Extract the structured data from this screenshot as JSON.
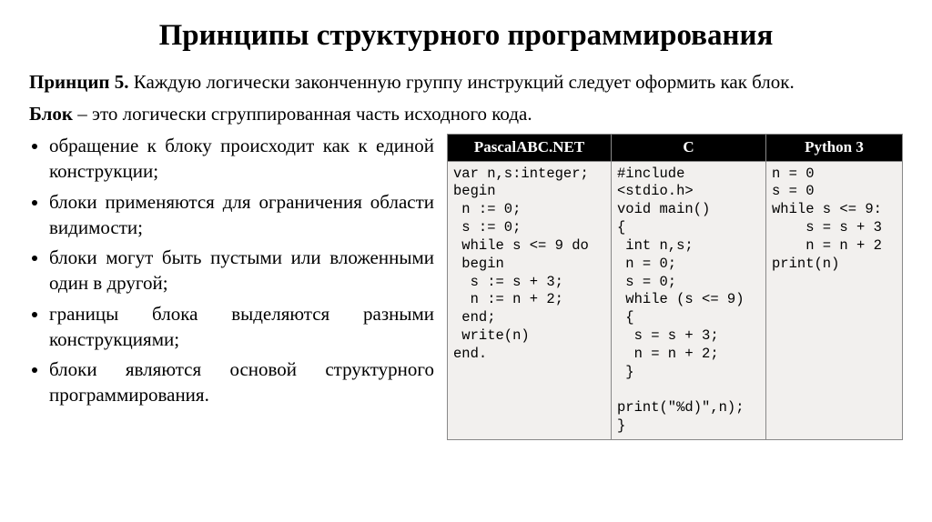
{
  "title": "Принципы структурного программирования",
  "principle_label": "Принцип 5.",
  "principle_text": " Каждую логически законченную группу инструкций следует оформить как блок.",
  "block_label": "Блок",
  "block_def": " – это логически сгруппированная часть исходного кода.",
  "bullets": [
    "обращение к блоку происходит как к единой конструкции;",
    "блоки применяются для ограничения области видимости;",
    "блоки могут быть пустыми или вложенными один в другой;",
    "границы блока выделяются разными конструкциями;",
    "блоки являются основой структурного программирования."
  ],
  "table": {
    "headers": [
      "PascalABC.NET",
      "C",
      "Python 3"
    ],
    "col_widths": [
      "36%",
      "34%",
      "30%"
    ],
    "pascal": "var n,s:integer;\nbegin\n n := 0;\n s := 0;\n while s <= 9 do\n begin\n  s := s + 3;\n  n := n + 2;\n end;\n write(n)\nend.",
    "c": "#include\n<stdio.h>\nvoid main()\n{\n int n,s;\n n = 0;\n s = 0;\n while (s <= 9)\n {\n  s = s + 3;\n  n = n + 2;\n }\n\nprint(\"%d)\",n);\n}",
    "python": "n = 0\ns = 0\nwhile s <= 9:\n    s = s + 3\n    n = n + 2\nprint(n)"
  }
}
